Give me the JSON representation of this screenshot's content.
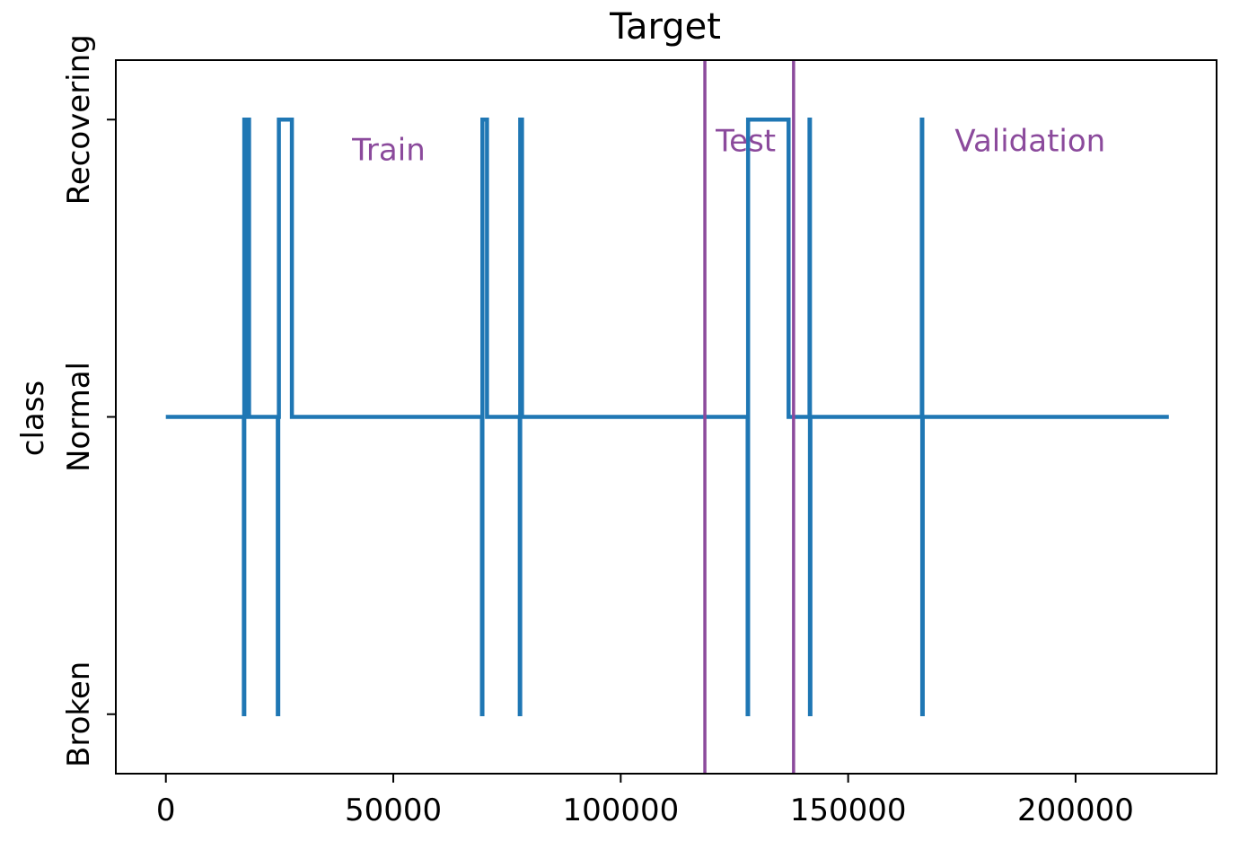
{
  "chart_data": {
    "type": "line",
    "title": "Target",
    "xlabel": "",
    "ylabel": "class",
    "xlim": [
      -11000,
      231000
    ],
    "ylim": [
      -0.1,
      1.1
    ],
    "x_ticks": [
      0,
      50000,
      100000,
      150000,
      200000
    ],
    "x_tick_labels": [
      "0",
      "50000",
      "100000",
      "150000",
      "200000"
    ],
    "y_categories": [
      "Broken",
      "Normal",
      "Recovering"
    ],
    "y_ticks": [
      0,
      0.5,
      1
    ],
    "grid": false,
    "series": [
      {
        "color": "#1f77b4",
        "step": "post",
        "points": [
          [
            0,
            0.5
          ],
          [
            17150,
            0
          ],
          [
            17250,
            1
          ],
          [
            17450,
            0.5
          ],
          [
            17550,
            1
          ],
          [
            17700,
            0.5
          ],
          [
            18150,
            1
          ],
          [
            18300,
            0.5
          ],
          [
            24600,
            0
          ],
          [
            24700,
            0.5
          ],
          [
            24850,
            1
          ],
          [
            27700,
            0.5
          ],
          [
            69500,
            0
          ],
          [
            69600,
            1
          ],
          [
            70600,
            0.5
          ],
          [
            77800,
            0
          ],
          [
            77900,
            1
          ],
          [
            78300,
            0.5
          ],
          [
            127900,
            0
          ],
          [
            128000,
            1
          ],
          [
            136900,
            0.5
          ],
          [
            141500,
            1
          ],
          [
            141600,
            0
          ],
          [
            141700,
            0.5
          ],
          [
            166200,
            1
          ],
          [
            166300,
            0
          ],
          [
            166400,
            0.5
          ],
          [
            220500,
            0.5
          ]
        ]
      }
    ],
    "split_lines": {
      "color": "#8b4a9c",
      "x": [
        118500,
        138000
      ]
    },
    "regions": [
      {
        "label": "Train",
        "color": "#8b4a9c",
        "x": 49000,
        "y": 0.95
      },
      {
        "label": "Test",
        "color": "#8b4a9c",
        "x": 127500,
        "y": 0.965
      },
      {
        "label": "Validation",
        "color": "#8b4a9c",
        "x": 190000,
        "y": 0.965
      }
    ]
  }
}
